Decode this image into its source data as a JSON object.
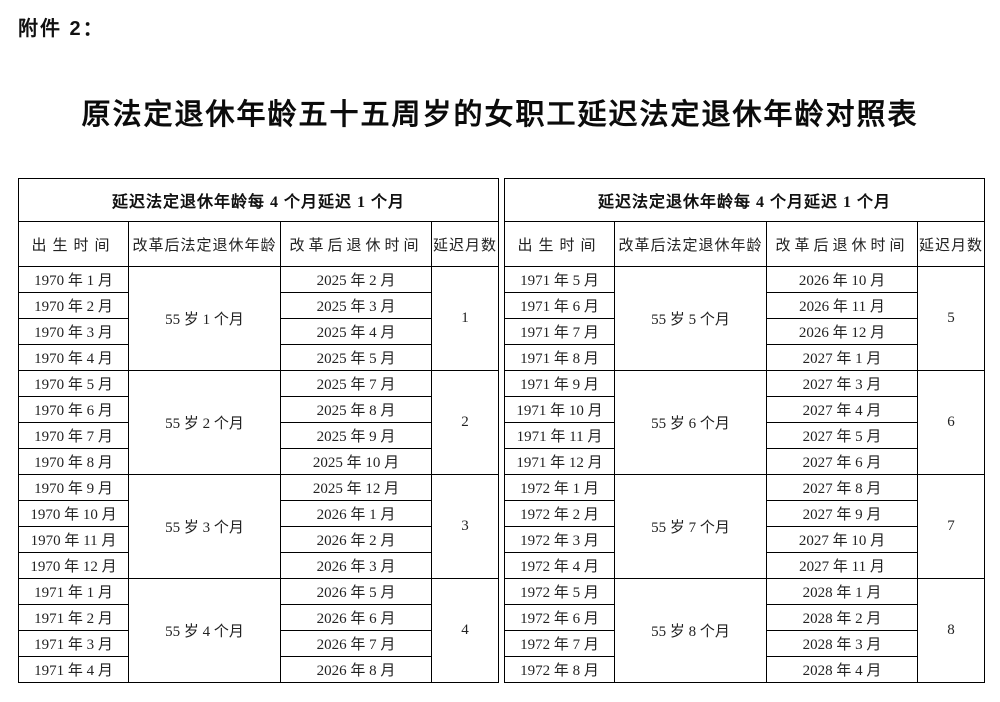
{
  "page": {
    "attachment_label": "附件 2：",
    "title": "原法定退休年龄五十五周岁的女职工延迟法定退休年龄对照表"
  },
  "colors": {
    "text": "#1a1a1a",
    "border": "#000000",
    "background": "#ffffff"
  },
  "table": {
    "group_header": "延迟法定退休年龄每 4 个月延迟 1 个月",
    "columns": [
      "出生时间",
      "改革后法定退休年龄",
      "改革后退休时间",
      "延迟月数"
    ],
    "halves": [
      {
        "groups": [
          {
            "birth_months": [
              "1970 年 1 月",
              "1970 年 2 月",
              "1970 年 3 月",
              "1970 年 4 月"
            ],
            "new_retirement_age": "55 岁 1 个月",
            "new_retirement_months": [
              "2025 年 2 月",
              "2025 年 3 月",
              "2025 年 4 月",
              "2025 年 5 月"
            ],
            "delay_months": "1"
          },
          {
            "birth_months": [
              "1970 年 5 月",
              "1970 年 6 月",
              "1970 年 7 月",
              "1970 年 8 月"
            ],
            "new_retirement_age": "55 岁 2 个月",
            "new_retirement_months": [
              "2025 年 7 月",
              "2025 年 8 月",
              "2025 年 9 月",
              "2025 年 10 月"
            ],
            "delay_months": "2"
          },
          {
            "birth_months": [
              "1970 年 9 月",
              "1970 年 10 月",
              "1970 年 11 月",
              "1970 年 12 月"
            ],
            "new_retirement_age": "55 岁 3 个月",
            "new_retirement_months": [
              "2025 年 12 月",
              "2026 年 1 月",
              "2026 年 2 月",
              "2026 年 3 月"
            ],
            "delay_months": "3"
          },
          {
            "birth_months": [
              "1971 年 1 月",
              "1971 年 2 月",
              "1971 年 3 月",
              "1971 年 4 月"
            ],
            "new_retirement_age": "55 岁 4 个月",
            "new_retirement_months": [
              "2026 年 5 月",
              "2026 年 6 月",
              "2026 年 7 月",
              "2026 年 8 月"
            ],
            "delay_months": "4"
          }
        ]
      },
      {
        "groups": [
          {
            "birth_months": [
              "1971 年 5 月",
              "1971 年 6 月",
              "1971 年 7 月",
              "1971 年 8 月"
            ],
            "new_retirement_age": "55 岁 5 个月",
            "new_retirement_months": [
              "2026 年 10 月",
              "2026 年 11 月",
              "2026 年 12 月",
              "2027 年 1 月"
            ],
            "delay_months": "5"
          },
          {
            "birth_months": [
              "1971 年 9 月",
              "1971 年 10 月",
              "1971 年 11 月",
              "1971 年 12 月"
            ],
            "new_retirement_age": "55 岁 6 个月",
            "new_retirement_months": [
              "2027 年 3 月",
              "2027 年 4 月",
              "2027 年 5 月",
              "2027 年 6 月"
            ],
            "delay_months": "6"
          },
          {
            "birth_months": [
              "1972 年 1 月",
              "1972 年 2 月",
              "1972 年 3 月",
              "1972 年 4 月"
            ],
            "new_retirement_age": "55 岁 7 个月",
            "new_retirement_months": [
              "2027 年 8 月",
              "2027 年 9 月",
              "2027 年 10 月",
              "2027 年 11 月"
            ],
            "delay_months": "7"
          },
          {
            "birth_months": [
              "1972 年 5 月",
              "1972 年 6 月",
              "1972 年 7 月",
              "1972 年 8 月"
            ],
            "new_retirement_age": "55 岁 8 个月",
            "new_retirement_months": [
              "2028 年 1 月",
              "2028 年 2 月",
              "2028 年 3 月",
              "2028 年 4 月"
            ],
            "delay_months": "8"
          }
        ]
      }
    ]
  }
}
